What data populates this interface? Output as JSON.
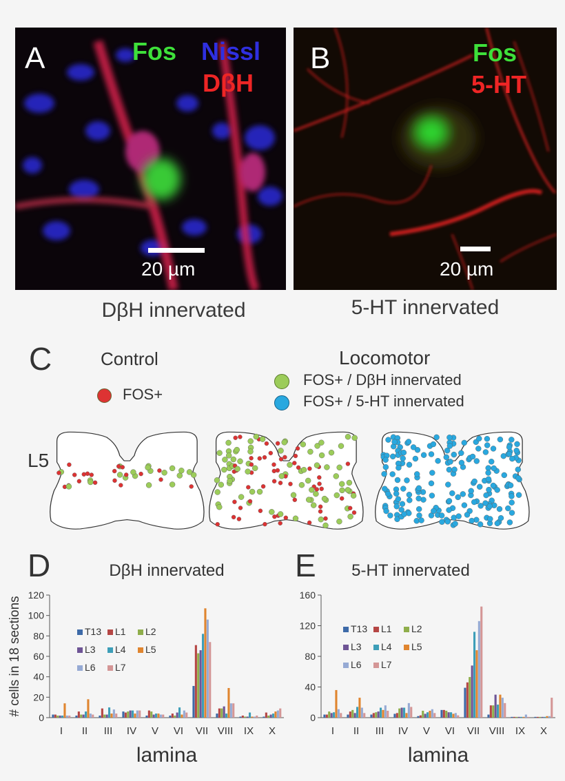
{
  "panelA": {
    "letter": "A",
    "label_fos": "Fos",
    "label_nissl": "Nissl",
    "label_dbh": "DβH",
    "scalebar": "20 µm",
    "caption": "DβH innervated",
    "colors": {
      "fos": "#3ee03a",
      "nissl": "#2222dd",
      "dbh": "#ee2222"
    }
  },
  "panelB": {
    "letter": "B",
    "label_fos": "Fos",
    "label_5ht": "5-HT",
    "scalebar": "20 µm",
    "caption": "5-HT innervated",
    "colors": {
      "fos": "#3ee03a",
      "ht": "#ee2222"
    }
  },
  "panelC": {
    "letter": "C",
    "control_title": "Control",
    "locomotor_title": "Locomotor",
    "legend_control": "FOS+",
    "legend_dbh": "FOS+ / DβH innervated",
    "legend_5ht": "FOS+ / 5-HT innervated",
    "segment": "L5",
    "colors": {
      "fos": "#dd3333",
      "dbh": "#9ccc5a",
      "ht": "#29a8df"
    }
  },
  "chart_data": [
    {
      "panel": "D",
      "type": "bar",
      "title": "DβH innervated",
      "ylabel": "# cells in 18 sections",
      "xlabel": "lamina",
      "ylim": [
        0,
        120
      ],
      "yticks": [
        0,
        20,
        40,
        60,
        80,
        100,
        120
      ],
      "categories": [
        "I",
        "II",
        "III",
        "IV",
        "V",
        "VI",
        "VII",
        "VIII",
        "IX",
        "X"
      ],
      "series": [
        {
          "name": "T13",
          "color": "#3d6aa8",
          "values": [
            3,
            2,
            2,
            6,
            2,
            2,
            31,
            4,
            1,
            1
          ]
        },
        {
          "name": "L1",
          "color": "#b54644",
          "values": [
            3,
            6,
            9,
            5,
            7,
            4,
            71,
            9,
            2,
            5
          ]
        },
        {
          "name": "L2",
          "color": "#8fae4b",
          "values": [
            2,
            3,
            3,
            6,
            6,
            2,
            63,
            9,
            1,
            2
          ]
        },
        {
          "name": "L3",
          "color": "#6e5495",
          "values": [
            2,
            3,
            3,
            7,
            3,
            5,
            66,
            11,
            1,
            3
          ]
        },
        {
          "name": "L4",
          "color": "#3d9eb8",
          "values": [
            2,
            6,
            10,
            7,
            4,
            10,
            82,
            4,
            5,
            4
          ]
        },
        {
          "name": "L5",
          "color": "#e0852f",
          "values": [
            14,
            18,
            4,
            4,
            4,
            3,
            107,
            29,
            1,
            6
          ]
        },
        {
          "name": "L6",
          "color": "#96aad4",
          "values": [
            2,
            4,
            8,
            7,
            3,
            7,
            96,
            14,
            1,
            7
          ]
        },
        {
          "name": "L7",
          "color": "#d49696",
          "values": [
            2,
            3,
            4,
            7,
            3,
            5,
            74,
            14,
            2,
            9
          ]
        }
      ]
    },
    {
      "panel": "E",
      "type": "bar",
      "title": "5-HT innervated",
      "ylabel": "",
      "xlabel": "lamina",
      "ylim": [
        0,
        160
      ],
      "yticks": [
        0,
        40,
        80,
        120,
        160
      ],
      "categories": [
        "I",
        "II",
        "III",
        "IV",
        "V",
        "VI",
        "VII",
        "VIII",
        "IX",
        "X"
      ],
      "series": [
        {
          "name": "T13",
          "color": "#3d6aa8",
          "values": [
            4,
            4,
            4,
            5,
            2,
            10,
            39,
            4,
            1,
            1
          ]
        },
        {
          "name": "L1",
          "color": "#b54644",
          "values": [
            4,
            8,
            6,
            6,
            3,
            10,
            46,
            16,
            1,
            1
          ]
        },
        {
          "name": "L2",
          "color": "#8fae4b",
          "values": [
            8,
            10,
            7,
            12,
            9,
            9,
            53,
            16,
            1,
            1
          ]
        },
        {
          "name": "L3",
          "color": "#6e5495",
          "values": [
            6,
            6,
            8,
            13,
            5,
            7,
            68,
            30,
            1,
            1
          ]
        },
        {
          "name": "L4",
          "color": "#3d9eb8",
          "values": [
            7,
            14,
            13,
            13,
            7,
            7,
            112,
            17,
            1,
            1
          ]
        },
        {
          "name": "L5",
          "color": "#e0852f",
          "values": [
            36,
            26,
            10,
            6,
            9,
            5,
            88,
            30,
            1,
            2
          ]
        },
        {
          "name": "L6",
          "color": "#96aad4",
          "values": [
            11,
            13,
            16,
            19,
            11,
            6,
            126,
            26,
            4,
            2
          ]
        },
        {
          "name": "L7",
          "color": "#d49696",
          "values": [
            6,
            6,
            9,
            14,
            6,
            3,
            145,
            19,
            1,
            26
          ]
        }
      ]
    }
  ],
  "panelD": {
    "letter": "D"
  },
  "panelE": {
    "letter": "E"
  }
}
